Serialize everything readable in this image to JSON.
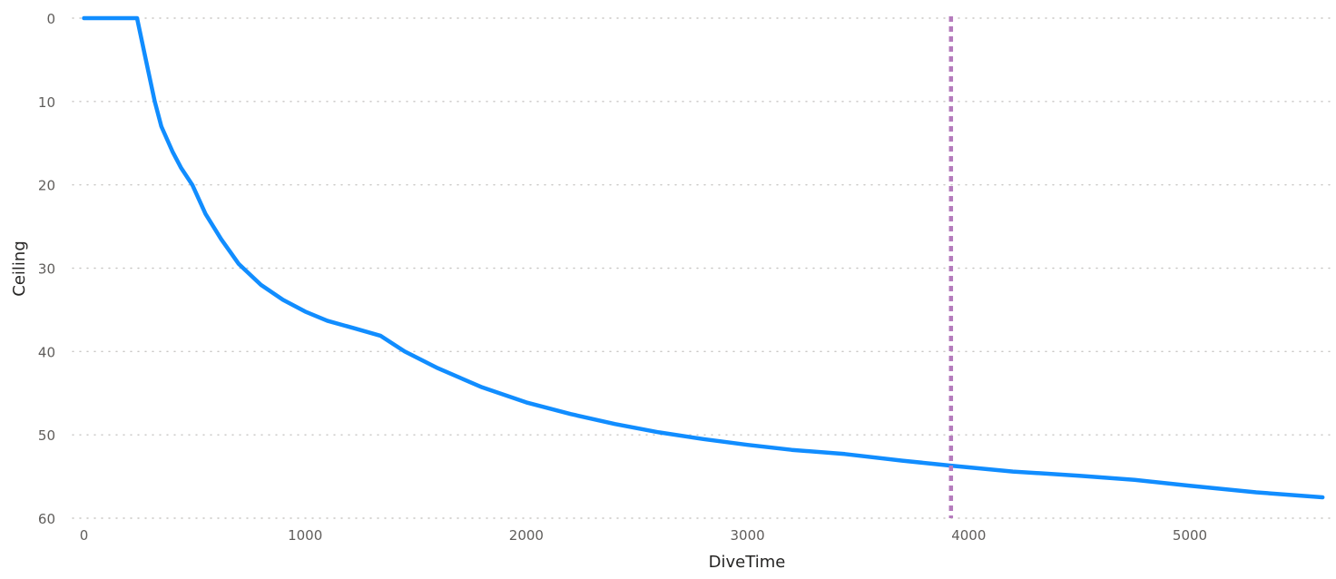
{
  "chart_data": {
    "type": "line",
    "title": "",
    "xlabel": "DiveTime",
    "ylabel": "Ceiling",
    "xlim": [
      -50,
      5650
    ],
    "ylim": [
      0,
      60
    ],
    "y_reversed": true,
    "grid": "horizontal dotted",
    "x_ticks": [
      0,
      1000,
      2000,
      3000,
      4000,
      5000
    ],
    "x_tick_labels": [
      "0",
      "1000",
      "2000",
      "3000",
      "4000",
      "5000"
    ],
    "y_ticks": [
      0,
      10,
      20,
      30,
      40,
      50,
      60
    ],
    "y_tick_labels": [
      "0",
      "10",
      "20",
      "30",
      "40",
      "50",
      "60"
    ],
    "series": [
      {
        "color": "#118dff",
        "x": [
          0,
          240,
          280,
          320,
          350,
          400,
          440,
          490,
          550,
          620,
          700,
          800,
          900,
          1000,
          1100,
          1220,
          1340,
          1450,
          1600,
          1800,
          2000,
          2200,
          2400,
          2600,
          2800,
          3000,
          3200,
          3440,
          3700,
          3920,
          4200,
          4500,
          4750,
          5000,
          5300,
          5600
        ],
        "y": [
          0,
          0,
          5,
          10,
          13,
          16,
          18,
          20,
          23.5,
          26.5,
          29.5,
          32,
          33.8,
          35.2,
          36.3,
          37.2,
          38.1,
          40,
          42,
          44.3,
          46.1,
          47.5,
          48.7,
          49.7,
          50.5,
          51.2,
          51.8,
          52.3,
          53.1,
          53.7,
          54.4,
          54.9,
          55.4,
          56.1,
          56.9,
          57.5
        ]
      }
    ],
    "reference_line": {
      "x": 3920,
      "color": "#b57bbd",
      "style": "dashed"
    }
  }
}
